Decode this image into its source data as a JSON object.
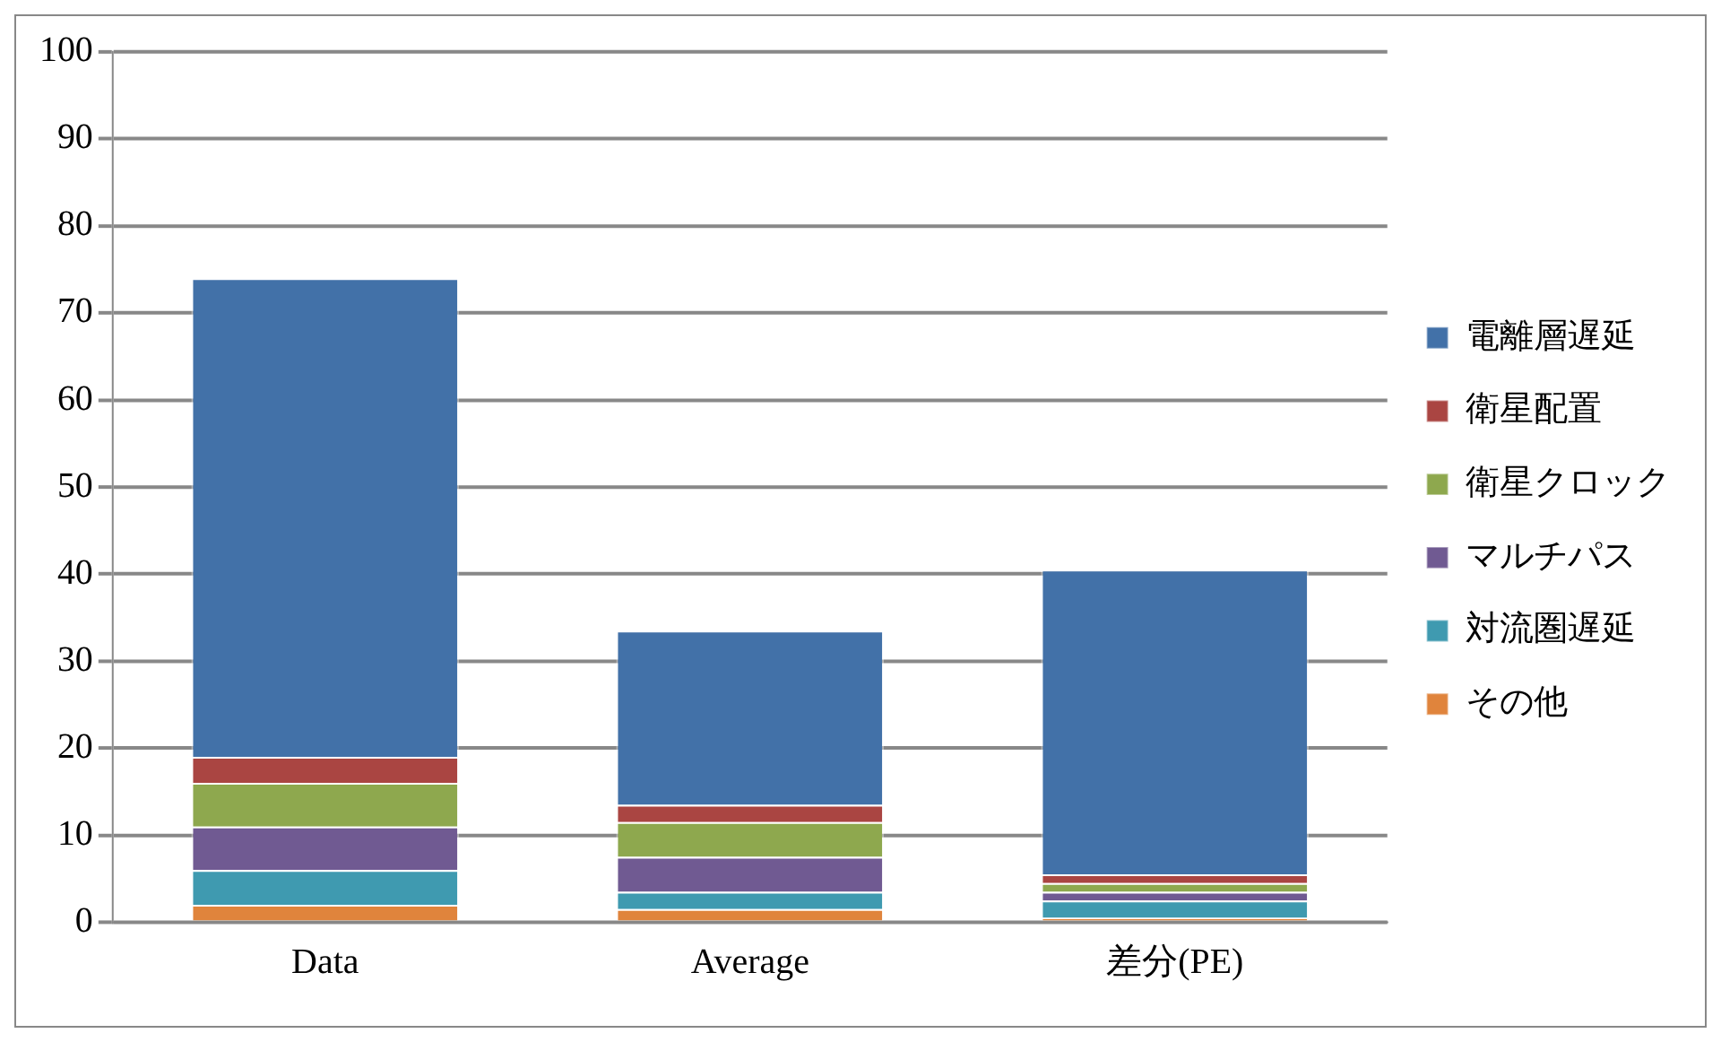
{
  "chart_data": {
    "type": "bar",
    "stacked": true,
    "categories": [
      "Data",
      "Average",
      "差分(PE)"
    ],
    "series": [
      {
        "name": "その他",
        "color": "#e0843c",
        "values": [
          2,
          1.5,
          0.5
        ]
      },
      {
        "name": "対流圏遅延",
        "color": "#3f9ab0",
        "values": [
          4,
          2,
          2
        ]
      },
      {
        "name": "マルチパス",
        "color": "#705a92",
        "values": [
          5,
          4,
          1
        ]
      },
      {
        "name": "衛星クロック",
        "color": "#8ea84e",
        "values": [
          5,
          4,
          1
        ]
      },
      {
        "name": "衛星配置",
        "color": "#aa4542",
        "values": [
          3,
          2,
          1
        ]
      },
      {
        "name": "電離層遅延",
        "color": "#4271a8",
        "values": [
          55,
          20,
          35
        ]
      }
    ],
    "ylim": [
      0,
      100
    ],
    "yticks": [
      0,
      10,
      20,
      30,
      40,
      50,
      60,
      70,
      80,
      90,
      100
    ],
    "grid": "y",
    "legend": "right"
  }
}
